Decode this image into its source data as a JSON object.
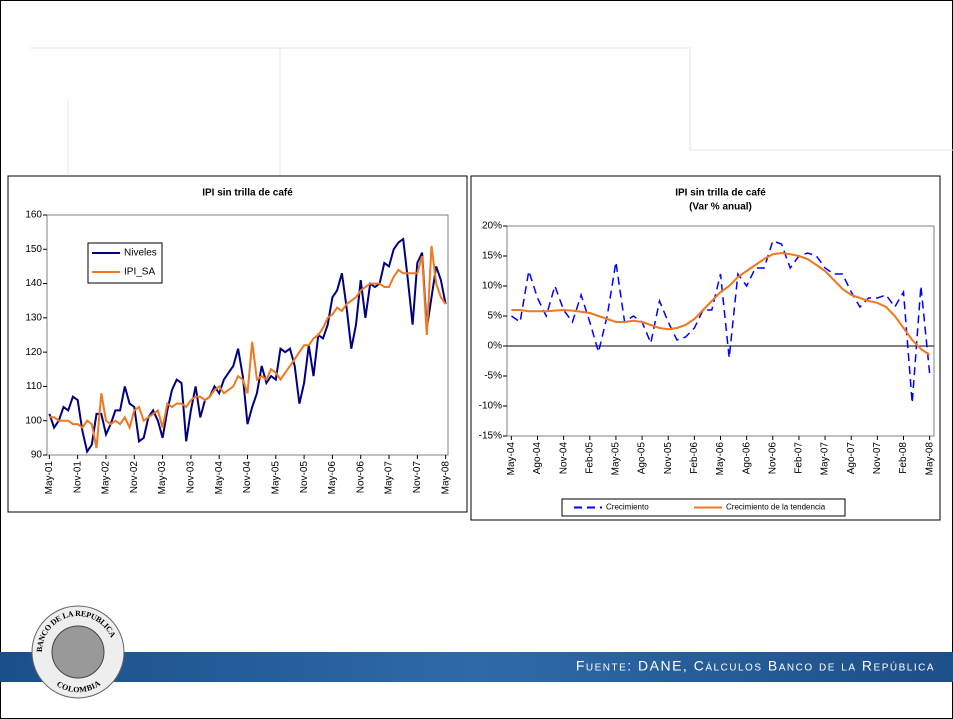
{
  "chart_data": [
    {
      "type": "line",
      "title": "IPI sin trilla de café",
      "categories": [
        "May-01",
        null,
        null,
        null,
        null,
        null,
        "Nov-01",
        null,
        null,
        null,
        null,
        null,
        "May-02",
        null,
        null,
        null,
        null,
        null,
        "Nov-02",
        null,
        null,
        null,
        null,
        null,
        "May-03",
        null,
        null,
        null,
        null,
        null,
        "Nov-03",
        null,
        null,
        null,
        null,
        null,
        "May-04",
        null,
        null,
        null,
        null,
        null,
        "Nov-04",
        null,
        null,
        null,
        null,
        null,
        "May-05",
        null,
        null,
        null,
        null,
        null,
        "Nov-05",
        null,
        null,
        null,
        null,
        null,
        "May-06",
        null,
        null,
        null,
        null,
        null,
        "Nov-06",
        null,
        null,
        null,
        null,
        null,
        "May-07",
        null,
        null,
        null,
        null,
        null,
        "Nov-07",
        null,
        null,
        null,
        null,
        null,
        "May-08"
      ],
      "series": [
        {
          "name": "Niveles",
          "color": "#000080",
          "style": "solid",
          "values": [
            102,
            98,
            100,
            104,
            103,
            107,
            106,
            97,
            91,
            93,
            102,
            102,
            96,
            99,
            103,
            103,
            110,
            105,
            104,
            94,
            95,
            101,
            103,
            100,
            95,
            103,
            109,
            112,
            111,
            94,
            103,
            110,
            101,
            106,
            107,
            110,
            108,
            112,
            114,
            116,
            121,
            113,
            99,
            104,
            108,
            116,
            111,
            113,
            112,
            121,
            120,
            121,
            116,
            105,
            111,
            122,
            113,
            125,
            124,
            128,
            136,
            138,
            143,
            133,
            121,
            128,
            141,
            130,
            140,
            139,
            140,
            146,
            145,
            150,
            152,
            153,
            141,
            128,
            146,
            149,
            127,
            136,
            145,
            141,
            134
          ]
        },
        {
          "name": "IPI_SA",
          "color": "#f07820",
          "style": "solid",
          "values": [
            101,
            101,
            100,
            100,
            100,
            99,
            99,
            98,
            100,
            99,
            92,
            108,
            100,
            99,
            100,
            99,
            101,
            98,
            103,
            104,
            100,
            101,
            102,
            103,
            98,
            105,
            104,
            105,
            105,
            104,
            106,
            107,
            107,
            106,
            107,
            109,
            110,
            108,
            109,
            110,
            113,
            112,
            108,
            123,
            112,
            113,
            112,
            115,
            114,
            112,
            114,
            116,
            118,
            120,
            122,
            122,
            124,
            125,
            127,
            130,
            131,
            133,
            132,
            134,
            135,
            136,
            138,
            139,
            140,
            140,
            140,
            139,
            139,
            142,
            144,
            143,
            143,
            143,
            143,
            148,
            125,
            151,
            140,
            136,
            134
          ]
        }
      ],
      "ylim": [
        90,
        160
      ],
      "yticks": [
        90,
        100,
        110,
        120,
        130,
        140,
        150,
        160
      ],
      "legend": "upper left"
    },
    {
      "type": "line",
      "title": "IPI sin trilla de café",
      "subtitle": "(Var % anual)",
      "categories": [
        "May-04",
        null,
        null,
        "Ago-04",
        null,
        null,
        "Nov-04",
        null,
        null,
        "Feb-05",
        null,
        null,
        "May-05",
        null,
        null,
        "Ago-05",
        null,
        null,
        "Nov-05",
        null,
        null,
        "Feb-06",
        null,
        null,
        "May-06",
        null,
        null,
        "Ago-06",
        null,
        null,
        "Nov-06",
        null,
        null,
        "Feb-07",
        null,
        null,
        "May-07",
        null,
        null,
        "Ago-07",
        null,
        null,
        "Nov-07",
        null,
        null,
        "Feb-08",
        null,
        null,
        "May-08"
      ],
      "series": [
        {
          "name": "Crecimiento",
          "color": "#0000ff",
          "style": "dashed",
          "values": [
            5,
            4,
            12.5,
            8,
            5,
            10,
            6,
            4,
            8.5,
            4,
            -1,
            5,
            14,
            4,
            5,
            4,
            0.5,
            7.5,
            4,
            1,
            1.5,
            3,
            6,
            6,
            12,
            -2,
            12,
            10,
            13,
            13,
            17.5,
            17,
            13,
            15,
            15.5,
            15,
            13,
            12,
            12,
            9,
            6.5,
            8,
            8,
            8.5,
            6.5,
            9,
            -9.5,
            10,
            -4.5
          ]
        },
        {
          "name": "Crecimiento de la tendencia",
          "color": "#f07820",
          "style": "solid",
          "values": [
            6,
            6,
            5.8,
            5.8,
            5.8,
            5.9,
            6,
            5.9,
            5.7,
            5.5,
            5,
            4.5,
            4,
            4,
            4.2,
            4,
            3.5,
            3,
            2.8,
            3,
            3.5,
            4.5,
            6,
            7.5,
            9,
            10,
            11.5,
            12.5,
            13.5,
            14.5,
            15.3,
            15.5,
            15.3,
            15,
            14.5,
            13.5,
            12.5,
            11,
            9.5,
            8.5,
            8,
            7.5,
            7.2,
            6.5,
            5,
            3,
            1,
            -0.5,
            -1.5
          ]
        }
      ],
      "ylim": [
        -15,
        20
      ],
      "yticks": [
        {
          "value": -15,
          "label": "-15%"
        },
        {
          "value": -10,
          "label": "-10%"
        },
        {
          "value": -5,
          "label": "-5%"
        },
        {
          "value": 0,
          "label": "0%"
        },
        {
          "value": 5,
          "label": "5%"
        },
        {
          "value": 10,
          "label": "10%"
        },
        {
          "value": 15,
          "label": "15%"
        },
        {
          "value": 20,
          "label": "20%"
        }
      ],
      "legend": "lower center"
    }
  ],
  "footer": "Fuente: DANE, Cálculos Banco de la República",
  "logo": {
    "top": "BANCO DE LA REPUBLICA",
    "bottom": "COLOMBIA"
  }
}
